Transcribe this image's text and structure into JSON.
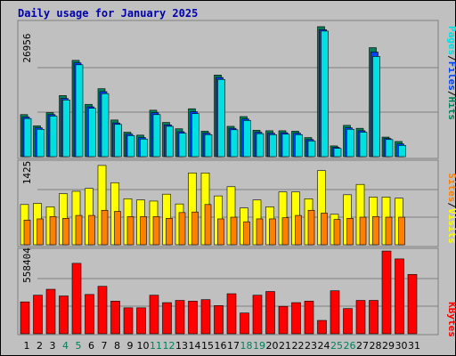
{
  "chart_data": [
    {
      "type": "bar",
      "panel": "hits-files-pages",
      "title": "Daily usage for January 2025",
      "ymax_label": "26956",
      "right_labels": [
        "Pages",
        "/",
        "Files",
        "/",
        "Hits"
      ],
      "ylim": [
        0,
        26956
      ],
      "categories": [
        "1",
        "2",
        "3",
        "4",
        "5",
        "6",
        "7",
        "8",
        "9",
        "10",
        "11",
        "12",
        "13",
        "14",
        "15",
        "16",
        "17",
        "18",
        "19",
        "20",
        "21",
        "22",
        "23",
        "24",
        "25",
        "26",
        "27",
        "28",
        "29",
        "30",
        "31"
      ],
      "series": [
        {
          "name": "Hits",
          "color": "#00805A",
          "values": [
            8600,
            6300,
            9000,
            12500,
            19700,
            10700,
            13900,
            7500,
            5000,
            4400,
            9500,
            7000,
            5700,
            9800,
            5200,
            16700,
            6200,
            8200,
            5400,
            5300,
            5300,
            5200,
            3900,
            26600,
            2200,
            6400,
            5800,
            22300,
            4000,
            3100,
            0
          ]
        },
        {
          "name": "Files",
          "color": "#0040FF",
          "values": [
            8100,
            5900,
            8600,
            11900,
            19200,
            10200,
            13300,
            6900,
            4600,
            3900,
            9000,
            6500,
            5100,
            9200,
            4800,
            16200,
            5800,
            7700,
            5000,
            4800,
            4900,
            4800,
            3500,
            26000,
            1900,
            5900,
            5300,
            21400,
            3700,
            2600,
            0
          ]
        },
        {
          "name": "Pages",
          "color": "#00E0E0",
          "values": [
            7800,
            5600,
            8300,
            11600,
            18800,
            9900,
            12900,
            6600,
            4300,
            3600,
            8600,
            6200,
            4800,
            8800,
            4500,
            15800,
            5500,
            7400,
            4700,
            4500,
            4600,
            4500,
            3200,
            25700,
            1700,
            5600,
            5000,
            20500,
            3500,
            2300,
            0
          ]
        }
      ]
    },
    {
      "type": "bar",
      "panel": "visits-sites",
      "ymax_label": "1425",
      "right_labels": [
        "Sites",
        "/",
        "Visits"
      ],
      "ylim": [
        0,
        1425
      ],
      "categories": [
        "1",
        "2",
        "3",
        "4",
        "5",
        "6",
        "7",
        "8",
        "9",
        "10",
        "11",
        "12",
        "13",
        "14",
        "15",
        "16",
        "17",
        "18",
        "19",
        "20",
        "21",
        "22",
        "23",
        "24",
        "25",
        "26",
        "27",
        "28",
        "29",
        "30",
        "31"
      ],
      "series": [
        {
          "name": "Visits",
          "color": "#FFFF00",
          "values": [
            700,
            720,
            660,
            890,
            930,
            980,
            1380,
            1080,
            800,
            780,
            760,
            880,
            710,
            1250,
            1250,
            850,
            1010,
            640,
            780,
            660,
            920,
            920,
            800,
            1290,
            530,
            870,
            1050,
            830,
            830,
            810,
            0
          ]
        },
        {
          "name": "Sites",
          "color": "#FF8000",
          "values": [
            430,
            450,
            490,
            460,
            510,
            510,
            600,
            580,
            490,
            490,
            490,
            460,
            560,
            570,
            700,
            450,
            480,
            400,
            450,
            450,
            470,
            510,
            600,
            550,
            440,
            460,
            480,
            490,
            480,
            480,
            0
          ]
        }
      ]
    },
    {
      "type": "bar",
      "panel": "kbytes",
      "ymax_label": "558404",
      "right_labels": [
        "KBytes"
      ],
      "ylim": [
        0,
        558404
      ],
      "categories": [
        "1",
        "2",
        "3",
        "4",
        "5",
        "6",
        "7",
        "8",
        "9",
        "10",
        "11",
        "12",
        "13",
        "14",
        "15",
        "16",
        "17",
        "18",
        "19",
        "20",
        "21",
        "22",
        "23",
        "24",
        "25",
        "26",
        "27",
        "28",
        "29",
        "30",
        "31"
      ],
      "series": [
        {
          "name": "KBytes",
          "color": "#FF0000",
          "values": [
            215000,
            260000,
            300000,
            255000,
            475000,
            265000,
            320000,
            220000,
            175000,
            175000,
            260000,
            210000,
            225000,
            220000,
            230000,
            190000,
            270000,
            140000,
            260000,
            285000,
            185000,
            210000,
            220000,
            90000,
            290000,
            170000,
            225000,
            225000,
            558000,
            505000,
            400000
          ]
        }
      ]
    }
  ],
  "x_axis": {
    "labels": [
      "1",
      "2",
      "3",
      "4",
      "5",
      "6",
      "7",
      "8",
      "9",
      "10",
      "11",
      "12",
      "13",
      "14",
      "15",
      "16",
      "17",
      "18",
      "19",
      "20",
      "21",
      "22",
      "23",
      "24",
      "25",
      "26",
      "27",
      "28",
      "29",
      "30",
      "31"
    ],
    "weekend_days": [
      "4",
      "5",
      "11",
      "12",
      "18",
      "19",
      "25",
      "26"
    ],
    "weekday_color": "#000000",
    "weekend_color": "#00805A"
  },
  "colors": {
    "background": "#C0C0C0",
    "gridline": "#808080",
    "title": "#0000AA",
    "label_pages": "#00E0E0",
    "label_files": "#0040FF",
    "label_hits": "#00805A",
    "label_sites": "#FF8000",
    "label_visits": "#FFFF00",
    "label_kbytes": "#FF0000"
  }
}
